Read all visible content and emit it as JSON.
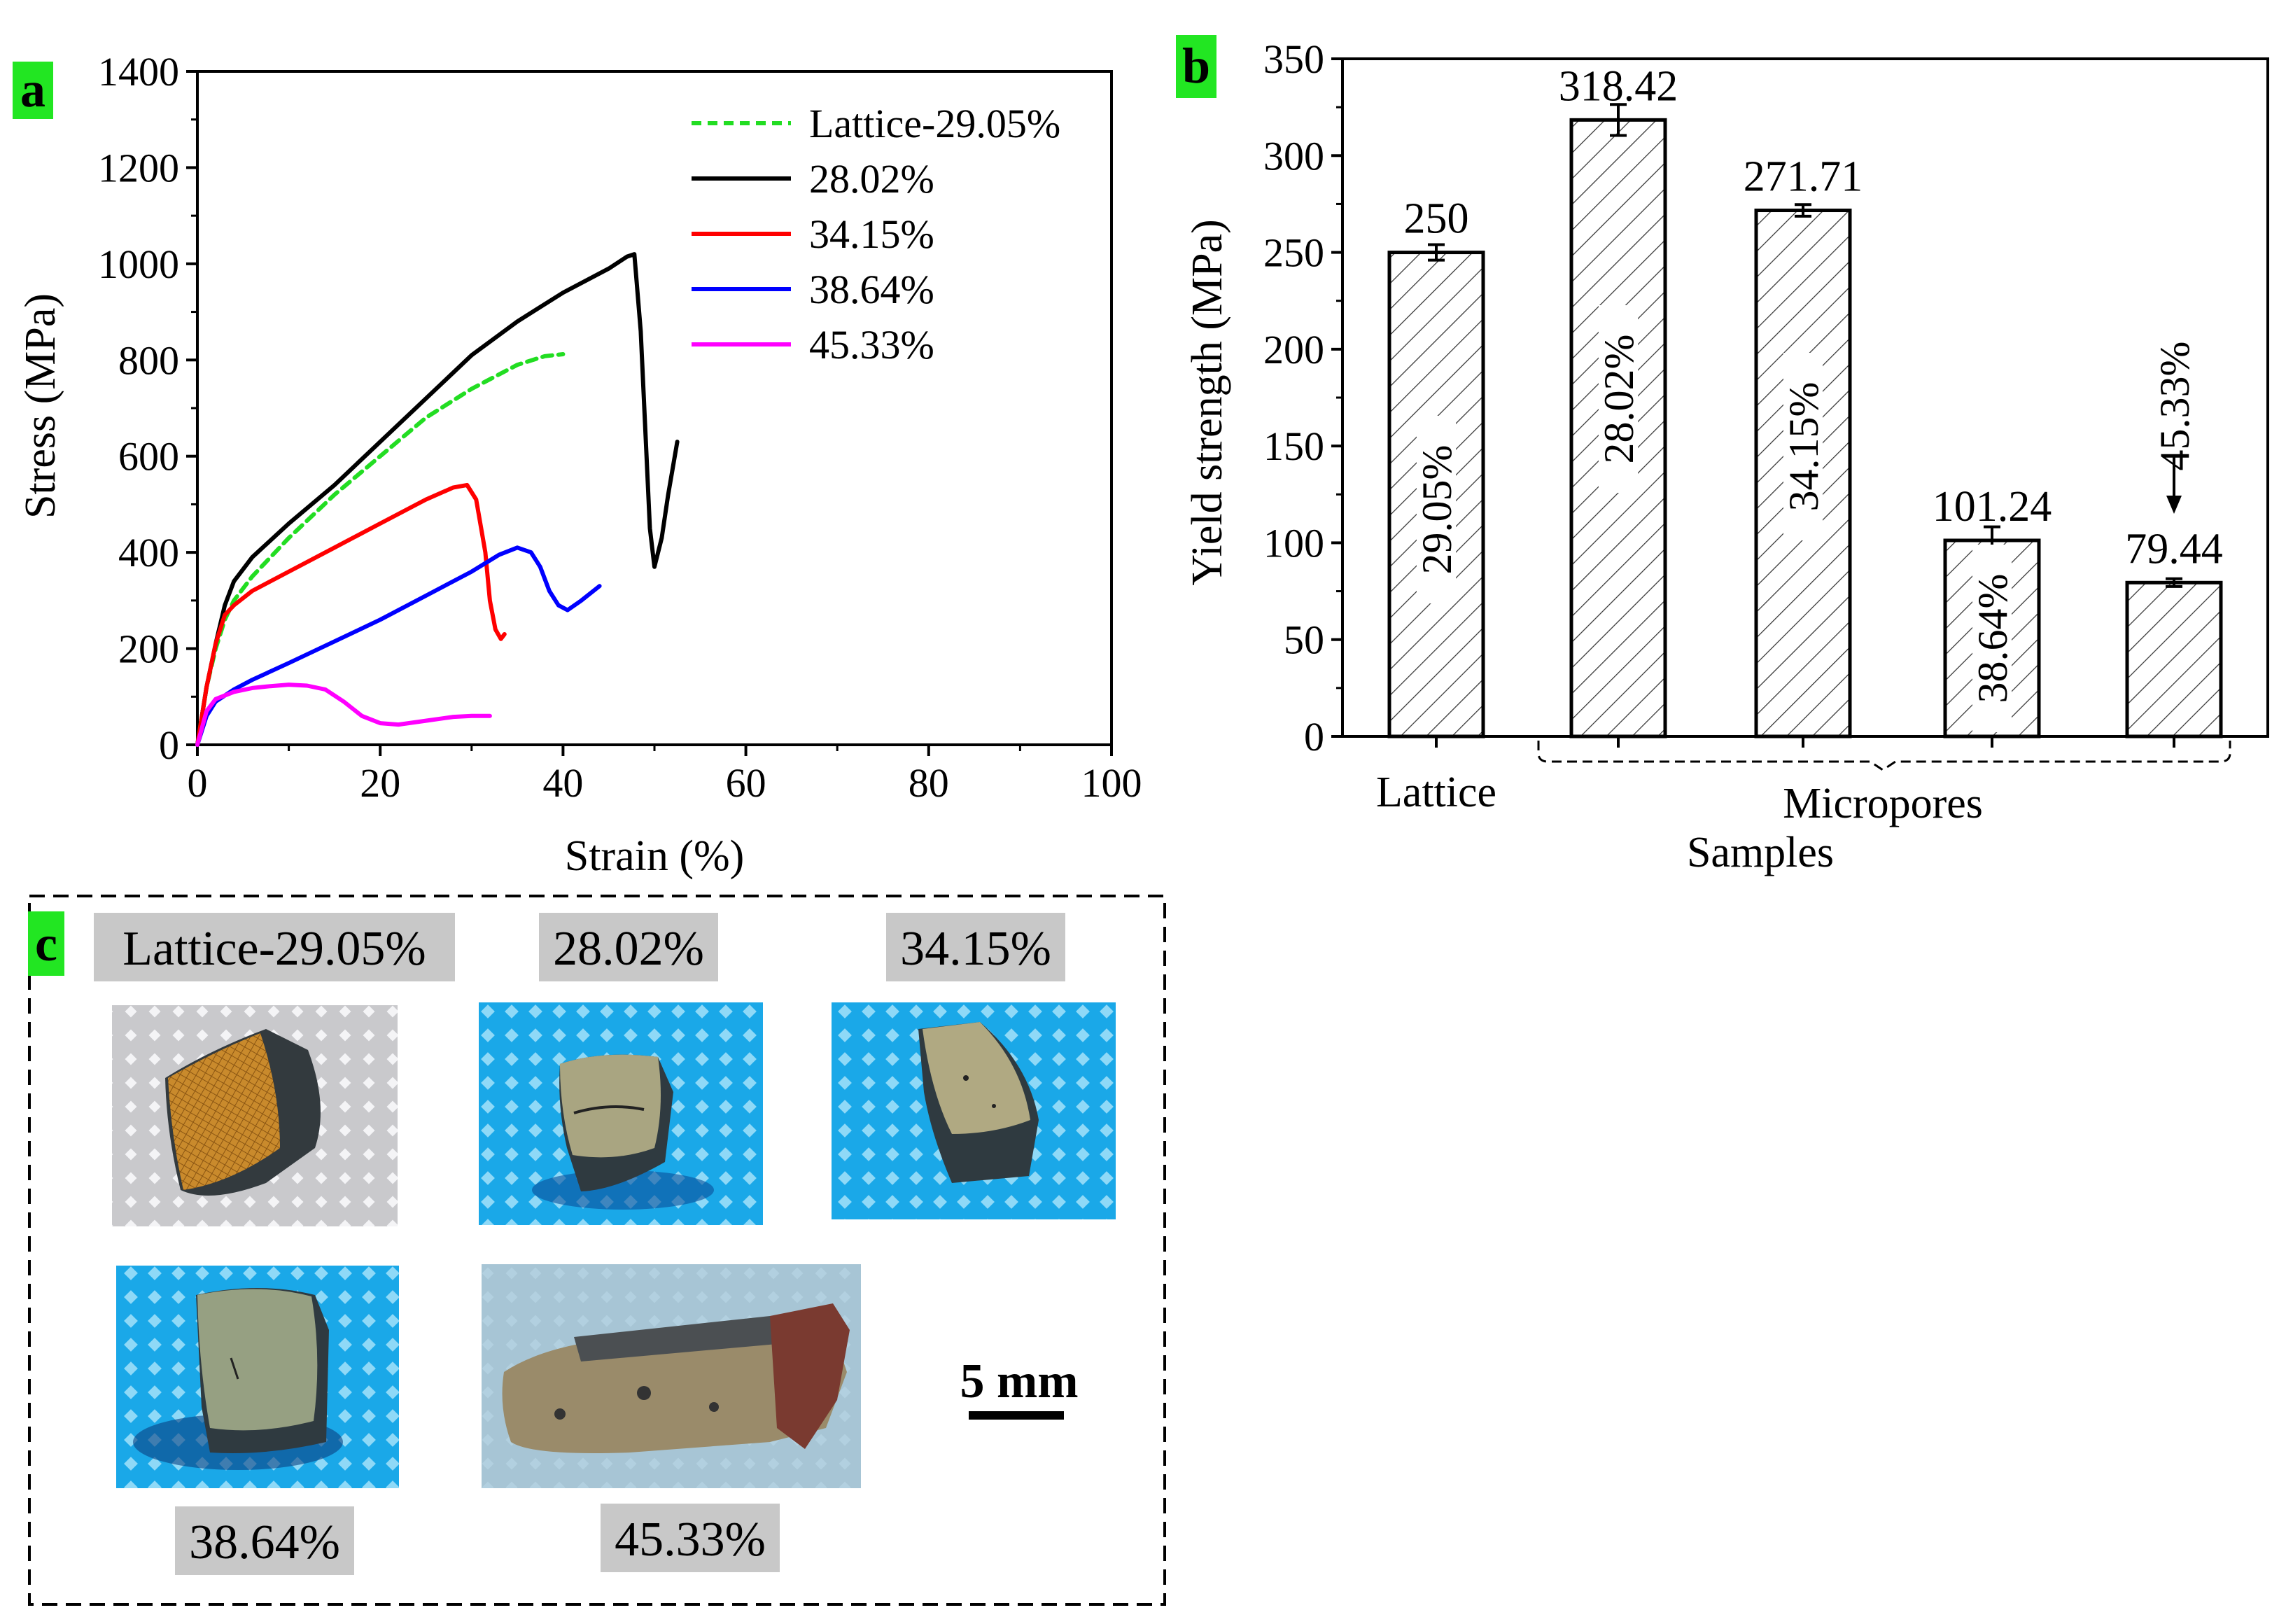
{
  "panels": {
    "a": "a",
    "b": "b",
    "c": "c"
  },
  "colors": {
    "panel_tag_bg": "#22e622",
    "label_bg": "#c8c8c8",
    "bar_fill": "#ffffff",
    "hatch": "#333333"
  },
  "chart_data": [
    {
      "type": "line",
      "panel": "a",
      "title": "",
      "xlabel": "Strain (%)",
      "ylabel": "Stress (MPa)",
      "xlim": [
        0,
        100
      ],
      "ylim": [
        0,
        1400
      ],
      "xticks": [
        0,
        20,
        40,
        60,
        80,
        100
      ],
      "yticks": [
        0,
        200,
        400,
        600,
        800,
        1000,
        1200,
        1400
      ],
      "legend_position": "top-right",
      "series": [
        {
          "name": "Lattice-29.05%",
          "color": "#22dd22",
          "dash": true,
          "x": [
            0,
            1,
            2,
            3,
            4,
            6,
            10,
            15,
            20,
            25,
            30,
            35,
            38,
            40
          ],
          "y": [
            0,
            120,
            200,
            260,
            300,
            350,
            430,
            520,
            600,
            680,
            740,
            790,
            808,
            812
          ]
        },
        {
          "name": "28.02%",
          "color": "#000000",
          "dash": false,
          "x": [
            0,
            1,
            2,
            3,
            4,
            6,
            10,
            15,
            20,
            25,
            30,
            35,
            40,
            45,
            47,
            47.8,
            48.5,
            49.5,
            50,
            50.8,
            51.5,
            52.5
          ],
          "y": [
            0,
            120,
            210,
            290,
            340,
            390,
            460,
            540,
            630,
            720,
            810,
            880,
            940,
            990,
            1015,
            1020,
            860,
            450,
            370,
            430,
            520,
            630
          ]
        },
        {
          "name": "34.15%",
          "color": "#ff0000",
          "dash": false,
          "x": [
            0,
            1,
            2,
            3,
            4,
            6,
            10,
            15,
            20,
            25,
            28,
            29.5,
            30.5,
            31.5,
            32,
            32.6,
            33.2,
            33.6
          ],
          "y": [
            0,
            120,
            210,
            270,
            290,
            320,
            360,
            410,
            460,
            510,
            535,
            540,
            510,
            400,
            300,
            240,
            220,
            230
          ]
        },
        {
          "name": "38.64%",
          "color": "#0000ff",
          "dash": false,
          "x": [
            0,
            1,
            2,
            4,
            6,
            10,
            15,
            20,
            25,
            30,
            33,
            35,
            36.5,
            37.5,
            38.5,
            39.5,
            40.5,
            42,
            44
          ],
          "y": [
            0,
            60,
            90,
            115,
            135,
            170,
            215,
            260,
            310,
            360,
            395,
            410,
            400,
            370,
            320,
            290,
            280,
            300,
            330
          ]
        },
        {
          "name": "45.33%",
          "color": "#ff00ff",
          "dash": false,
          "x": [
            0,
            1,
            2,
            4,
            6,
            8,
            10,
            12,
            14,
            16,
            18,
            20,
            22,
            25,
            28,
            30,
            32
          ],
          "y": [
            0,
            70,
            95,
            110,
            118,
            122,
            125,
            123,
            115,
            90,
            60,
            45,
            42,
            50,
            58,
            60,
            60
          ]
        }
      ]
    },
    {
      "type": "bar",
      "panel": "b",
      "title": "",
      "xlabel": "Samples",
      "ylabel": "Yield strength (MPa)",
      "ylim": [
        0,
        350
      ],
      "yticks": [
        0,
        50,
        100,
        150,
        200,
        250,
        300,
        350
      ],
      "categories": [
        "29.05%",
        "28.02%",
        "34.15%",
        "38.64%",
        "45.33%"
      ],
      "values": [
        250,
        318.42,
        271.71,
        101.24,
        79.44
      ],
      "value_labels": [
        "250",
        "318.42",
        "271.71",
        "101.24",
        "79.44"
      ],
      "errors": [
        4,
        8,
        3,
        7,
        2
      ],
      "group_labels": [
        "Lattice",
        "Micropores"
      ],
      "annotation": "45.33%"
    }
  ],
  "photos": {
    "labels": [
      "Lattice-29.05%",
      "28.02%",
      "34.15%",
      "38.64%",
      "45.33%"
    ],
    "scale_bar": "5 mm"
  }
}
